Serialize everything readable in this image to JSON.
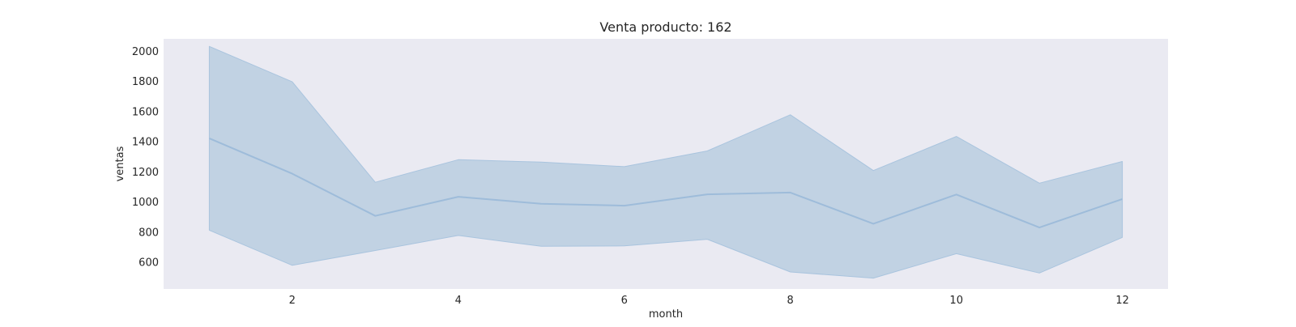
{
  "chart_data": {
    "type": "area",
    "title": "Venta producto: 162",
    "xlabel": "month",
    "ylabel": "ventas",
    "xlim": [
      0.45,
      12.55
    ],
    "ylim": [
      420,
      2080
    ],
    "xticks": [
      2,
      4,
      6,
      8,
      10,
      12
    ],
    "yticks": [
      600,
      800,
      1000,
      1200,
      1400,
      1600,
      1800,
      2000
    ],
    "grid": false,
    "x": [
      1,
      2,
      3,
      4,
      5,
      6,
      7,
      8,
      9,
      10,
      11,
      12
    ],
    "series": [
      {
        "values": [
          1420,
          1185,
          905,
          1032,
          985,
          973,
          1048,
          1060,
          853,
          1047,
          828,
          1017
        ],
        "lower": [
          810,
          577,
          675,
          775,
          703,
          706,
          750,
          533,
          492,
          654,
          526,
          762
        ],
        "upper": [
          2030,
          1795,
          1128,
          1278,
          1262,
          1232,
          1336,
          1576,
          1206,
          1432,
          1122,
          1266
        ]
      }
    ],
    "colors": {
      "background": "#eaeaf2",
      "line": "#9ebcda",
      "band": "#c1d2e3",
      "band_edge": "#a9c4de"
    }
  }
}
